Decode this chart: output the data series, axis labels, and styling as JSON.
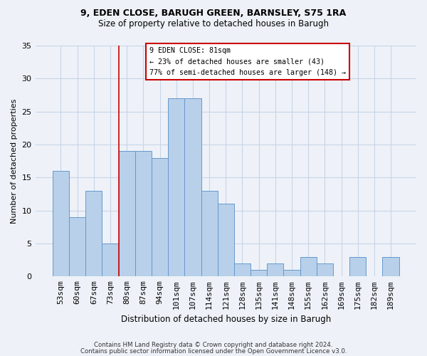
{
  "title_line1": "9, EDEN CLOSE, BARUGH GREEN, BARNSLEY, S75 1RA",
  "title_line2": "Size of property relative to detached houses in Barugh",
  "xlabel": "Distribution of detached houses by size in Barugh",
  "ylabel": "Number of detached properties",
  "categories": [
    "53sqm",
    "60sqm",
    "67sqm",
    "73sqm",
    "80sqm",
    "87sqm",
    "94sqm",
    "101sqm",
    "107sqm",
    "114sqm",
    "121sqm",
    "128sqm",
    "135sqm",
    "141sqm",
    "148sqm",
    "155sqm",
    "162sqm",
    "169sqm",
    "175sqm",
    "182sqm",
    "189sqm"
  ],
  "values": [
    16,
    9,
    13,
    5,
    19,
    19,
    18,
    27,
    27,
    13,
    11,
    2,
    1,
    2,
    1,
    3,
    2,
    0,
    3,
    0,
    3
  ],
  "bar_color": "#b8d0ea",
  "bar_edge_color": "#6699cc",
  "grid_color": "#c8d4e8",
  "annotation_box_text": "9 EDEN CLOSE: 81sqm\n← 23% of detached houses are smaller (43)\n77% of semi-detached houses are larger (148) →",
  "annotation_box_color": "#ffffff",
  "annotation_box_edge_color": "#cc0000",
  "vline_color": "#cc0000",
  "vline_x_index": 4,
  "ylim": [
    0,
    35
  ],
  "yticks": [
    0,
    5,
    10,
    15,
    20,
    25,
    30,
    35
  ],
  "footer_line1": "Contains HM Land Registry data © Crown copyright and database right 2024.",
  "footer_line2": "Contains public sector information licensed under the Open Government Licence v3.0.",
  "background_color": "#eef2f8",
  "plot_background_color": "#eef2f8",
  "title_fontsize": 9,
  "subtitle_fontsize": 8.5
}
